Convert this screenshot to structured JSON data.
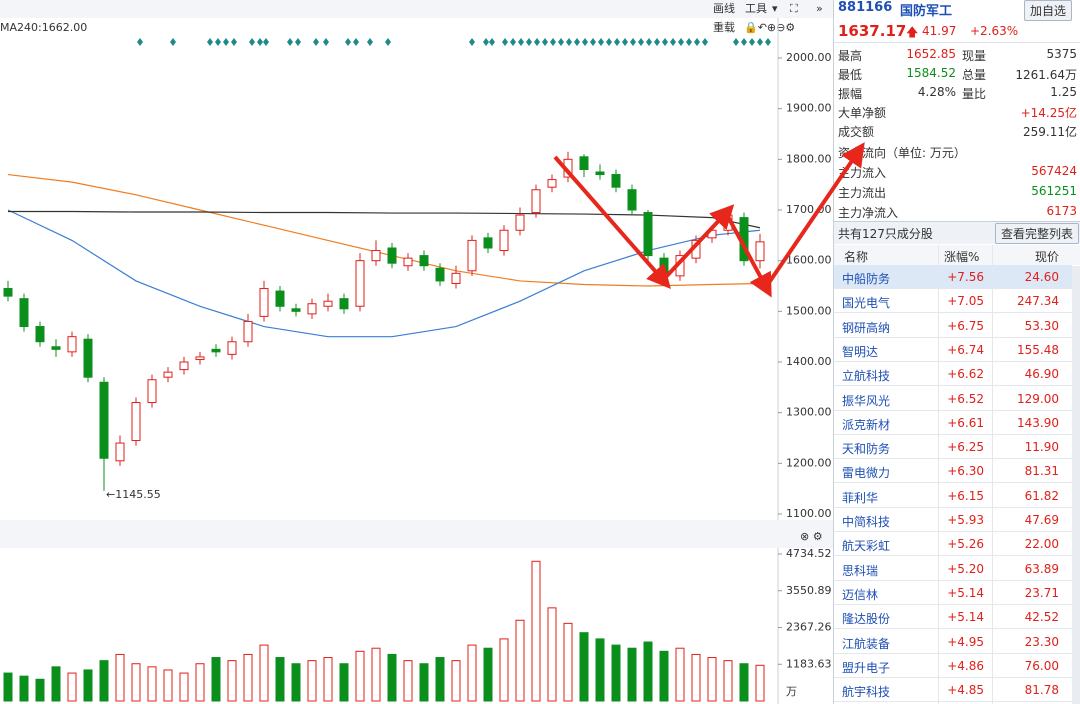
{
  "toolbar": {
    "ma_label": "MA240:1662.00",
    "draw": "画线",
    "tools": "工具",
    "reload": "重载"
  },
  "chart_data": [
    {
      "type": "candlestick",
      "open": [
        1545,
        1525,
        1470,
        1430,
        1420,
        1445,
        1360,
        1205,
        1245,
        1320,
        1370,
        1385,
        1405,
        1425,
        1415,
        1440,
        1490,
        1540,
        1505,
        1495,
        1510,
        1525,
        1510,
        1600,
        1625,
        1590,
        1610,
        1585,
        1555,
        1580,
        1645,
        1620,
        1660,
        1695,
        1745,
        1765,
        1805,
        1775,
        1770,
        1740,
        1695,
        1605,
        1570,
        1605,
        1645,
        1660,
        1685,
        1600
      ],
      "high": [
        1560,
        1535,
        1480,
        1445,
        1460,
        1455,
        1370,
        1255,
        1330,
        1375,
        1390,
        1410,
        1420,
        1435,
        1450,
        1495,
        1560,
        1550,
        1515,
        1525,
        1535,
        1535,
        1615,
        1640,
        1635,
        1615,
        1620,
        1595,
        1590,
        1650,
        1655,
        1670,
        1705,
        1750,
        1770,
        1815,
        1810,
        1790,
        1780,
        1750,
        1700,
        1615,
        1620,
        1650,
        1670,
        1700,
        1695,
        1652.85
      ],
      "low": [
        1520,
        1460,
        1430,
        1410,
        1410,
        1360,
        1145.55,
        1195,
        1235,
        1310,
        1360,
        1375,
        1395,
        1410,
        1405,
        1430,
        1480,
        1500,
        1490,
        1485,
        1500,
        1495,
        1500,
        1590,
        1585,
        1580,
        1580,
        1550,
        1545,
        1570,
        1615,
        1610,
        1650,
        1685,
        1735,
        1755,
        1765,
        1760,
        1735,
        1690,
        1600,
        1560,
        1560,
        1595,
        1635,
        1650,
        1590,
        1584.52
      ],
      "close": [
        1530,
        1470,
        1440,
        1425,
        1450,
        1370,
        1210,
        1240,
        1320,
        1365,
        1380,
        1400,
        1410,
        1420,
        1440,
        1480,
        1545,
        1510,
        1500,
        1515,
        1520,
        1505,
        1600,
        1620,
        1595,
        1605,
        1590,
        1560,
        1575,
        1640,
        1625,
        1660,
        1690,
        1740,
        1760,
        1800,
        1780,
        1770,
        1745,
        1700,
        1610,
        1575,
        1610,
        1640,
        1660,
        1690,
        1600,
        1637.17
      ],
      "up_color": "#e0201a",
      "down_color": "#0b8f1c",
      "annotation": "←1145.55",
      "ma": [
        {
          "color": "#f07c20",
          "x": [
            0,
            4,
            8,
            12,
            16,
            20,
            24,
            28,
            32,
            36,
            40,
            44,
            47
          ],
          "values": [
            1770,
            1755,
            1730,
            1700,
            1670,
            1640,
            1610,
            1580,
            1560,
            1553,
            1550,
            1553,
            1555
          ]
        },
        {
          "color": "#3a7fd5",
          "x": [
            0,
            4,
            8,
            12,
            16,
            20,
            24,
            28,
            32,
            36,
            40,
            44,
            47
          ],
          "values": [
            1700,
            1640,
            1560,
            1510,
            1470,
            1450,
            1450,
            1470,
            1520,
            1580,
            1620,
            1650,
            1660
          ]
        },
        {
          "color": "#333333",
          "x": [
            0,
            4,
            8,
            12,
            16,
            20,
            24,
            28,
            32,
            36,
            40,
            44,
            47
          ],
          "values": [
            1697,
            1697,
            1696,
            1696,
            1695,
            1695,
            1694,
            1694,
            1693,
            1692,
            1690,
            1685,
            1665
          ]
        }
      ],
      "ylim": [
        1100,
        2000
      ],
      "yticks": [
        {
          "value": 2000,
          "label": "2000.00"
        },
        {
          "value": 1900,
          "label": "1900.00"
        },
        {
          "value": 1800,
          "label": "1800.00"
        },
        {
          "value": 1700,
          "label": "1700.00"
        },
        {
          "value": 1600,
          "label": "1600.00"
        },
        {
          "value": 1500,
          "label": "1500.00"
        },
        {
          "value": 1400,
          "label": "1400.00"
        },
        {
          "value": 1300,
          "label": "1300.00"
        },
        {
          "value": 1200,
          "label": "1200.00"
        },
        {
          "value": 1100,
          "label": "1100.00"
        }
      ]
    },
    {
      "type": "bar",
      "values": [
        900,
        800,
        700,
        1100,
        900,
        1000,
        1300,
        1500,
        1200,
        1100,
        1000,
        900,
        1200,
        1400,
        1300,
        1500,
        1800,
        1400,
        1200,
        1300,
        1400,
        1200,
        1600,
        1700,
        1500,
        1300,
        1200,
        1400,
        1300,
        1800,
        1700,
        2000,
        2600,
        4500,
        3000,
        2500,
        2200,
        2000,
        1800,
        1700,
        1900,
        1600,
        1700,
        1500,
        1400,
        1300,
        1200,
        1150
      ],
      "ylim": [
        0,
        4734.52
      ],
      "yticks": [
        1183.63,
        2367.26,
        3550.89,
        4734.52
      ],
      "unit": "万"
    }
  ],
  "header": {
    "code": "881166",
    "name": "国防军工",
    "button": "加自选",
    "price": "1637.17",
    "change": "41.97",
    "pct": "+2.63%"
  },
  "stats": [
    [
      "最高",
      "1652.85",
      "现量",
      "5375"
    ],
    [
      "最低",
      "1584.52",
      "总量",
      "1261.64万"
    ],
    [
      "振幅",
      "4.28%",
      "量比",
      "1.25"
    ]
  ],
  "big": [
    [
      "大单净额",
      "+14.25亿"
    ],
    [
      "成交额",
      "259.11亿"
    ]
  ],
  "flow": {
    "title": "资金流向（单位: 万元）",
    "rows": [
      [
        "主力流入",
        "567424"
      ],
      [
        "主力流出",
        "561251"
      ],
      [
        "主力净流入",
        "6173"
      ]
    ]
  },
  "components": {
    "title": "共有127只成分股",
    "button": "查看完整列表",
    "columns": [
      "名称",
      "涨幅%",
      "现价"
    ],
    "rows": [
      [
        "中船防务",
        "+7.56",
        "24.60"
      ],
      [
        "国光电气",
        "+7.05",
        "247.34"
      ],
      [
        "钢研高纳",
        "+6.75",
        "53.30"
      ],
      [
        "智明达",
        "+6.74",
        "155.48"
      ],
      [
        "立航科技",
        "+6.62",
        "46.90"
      ],
      [
        "振华风光",
        "+6.52",
        "129.00"
      ],
      [
        "派克新材",
        "+6.61",
        "143.90"
      ],
      [
        "天和防务",
        "+6.25",
        "11.90"
      ],
      [
        "雷电微力",
        "+6.30",
        "81.31"
      ],
      [
        "菲利华",
        "+6.15",
        "61.82"
      ],
      [
        "中简科技",
        "+5.93",
        "47.69"
      ],
      [
        "航天彩虹",
        "+5.26",
        "22.00"
      ],
      [
        "思科瑞",
        "+5.20",
        "63.89"
      ],
      [
        "迈信林",
        "+5.14",
        "23.71"
      ],
      [
        "隆达股份",
        "+5.14",
        "42.52"
      ],
      [
        "江航装备",
        "+4.95",
        "23.30"
      ],
      [
        "盟升电子",
        "+4.86",
        "76.00"
      ],
      [
        "航宇科技",
        "+4.85",
        "81.78"
      ]
    ]
  }
}
